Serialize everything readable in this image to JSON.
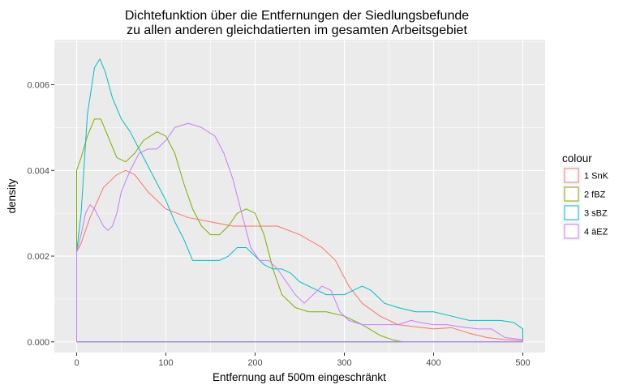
{
  "chart_data": {
    "type": "line",
    "title_line1": "Dichtefunktion über die Entfernungen der Siedlungsbefunde",
    "title_line2": "zu allen anderen gleichdatierten im gesamten Arbeitsgebiet",
    "xlabel": "Entfernung auf 500m eingeschränkt",
    "ylabel": "density",
    "xlim": [
      -25,
      525
    ],
    "ylim": [
      -0.00025,
      0.00705
    ],
    "x_ticks": [
      0,
      100,
      200,
      300,
      400,
      500
    ],
    "x_tick_labels": [
      "0",
      "100",
      "200",
      "300",
      "400",
      "500"
    ],
    "y_ticks": [
      0,
      0.002,
      0.004,
      0.006
    ],
    "y_tick_labels": [
      "0.000",
      "0.002",
      "0.004",
      "0.006"
    ],
    "grid": true,
    "legend": {
      "title": "colour",
      "position": "right"
    },
    "panel_color": "#ebebeb",
    "grid_color": "#ffffff",
    "series": [
      {
        "name": "1 SnK",
        "color": "#F8766D",
        "points": [
          [
            0,
            0.0021
          ],
          [
            5,
            0.0023
          ],
          [
            15,
            0.0029
          ],
          [
            30,
            0.0036
          ],
          [
            45,
            0.0039
          ],
          [
            55,
            0.004
          ],
          [
            65,
            0.0039
          ],
          [
            80,
            0.0035
          ],
          [
            100,
            0.0031
          ],
          [
            125,
            0.0029
          ],
          [
            150,
            0.0028
          ],
          [
            175,
            0.0027
          ],
          [
            200,
            0.0027
          ],
          [
            225,
            0.0027
          ],
          [
            250,
            0.0025
          ],
          [
            275,
            0.0022
          ],
          [
            290,
            0.0019
          ],
          [
            305,
            0.0013
          ],
          [
            320,
            0.0009
          ],
          [
            340,
            0.0006
          ],
          [
            360,
            0.0004
          ],
          [
            380,
            0.00035
          ],
          [
            400,
            0.0003
          ],
          [
            420,
            0.00033
          ],
          [
            440,
            0.0002
          ],
          [
            460,
            0.0001
          ],
          [
            480,
            5e-05
          ],
          [
            500,
            3e-05
          ],
          [
            500,
            0
          ],
          [
            0,
            0
          ],
          [
            0,
            0.0021
          ]
        ]
      },
      {
        "name": "2 fBZ",
        "color": "#7CAE00",
        "points": [
          [
            0,
            0.004
          ],
          [
            5,
            0.0043
          ],
          [
            12,
            0.0048
          ],
          [
            20,
            0.0052
          ],
          [
            27,
            0.0052
          ],
          [
            35,
            0.0048
          ],
          [
            45,
            0.0043
          ],
          [
            55,
            0.0042
          ],
          [
            65,
            0.0044
          ],
          [
            75,
            0.0047
          ],
          [
            90,
            0.0049
          ],
          [
            100,
            0.0048
          ],
          [
            110,
            0.0044
          ],
          [
            120,
            0.0037
          ],
          [
            130,
            0.0031
          ],
          [
            140,
            0.0027
          ],
          [
            150,
            0.0025
          ],
          [
            160,
            0.0025
          ],
          [
            170,
            0.0027
          ],
          [
            180,
            0.003
          ],
          [
            190,
            0.0031
          ],
          [
            200,
            0.003
          ],
          [
            210,
            0.0025
          ],
          [
            220,
            0.0017
          ],
          [
            230,
            0.0011
          ],
          [
            245,
            0.0008
          ],
          [
            260,
            0.0007
          ],
          [
            280,
            0.0007
          ],
          [
            300,
            0.0006
          ],
          [
            320,
            0.0004
          ],
          [
            340,
            0.00015
          ],
          [
            355,
            4e-05
          ],
          [
            365,
            0.0
          ],
          [
            0,
            0
          ],
          [
            0,
            0.004
          ]
        ]
      },
      {
        "name": "3 sBZ",
        "color": "#00BFC4",
        "points": [
          [
            0,
            0.0021
          ],
          [
            5,
            0.003
          ],
          [
            12,
            0.0053
          ],
          [
            20,
            0.0064
          ],
          [
            26,
            0.0066
          ],
          [
            32,
            0.0063
          ],
          [
            40,
            0.0057
          ],
          [
            50,
            0.0052
          ],
          [
            60,
            0.0049
          ],
          [
            70,
            0.0045
          ],
          [
            80,
            0.0041
          ],
          [
            90,
            0.0037
          ],
          [
            100,
            0.0033
          ],
          [
            110,
            0.0028
          ],
          [
            120,
            0.0024
          ],
          [
            130,
            0.0019
          ],
          [
            140,
            0.0019
          ],
          [
            150,
            0.0019
          ],
          [
            160,
            0.0019
          ],
          [
            170,
            0.002
          ],
          [
            180,
            0.0022
          ],
          [
            190,
            0.0022
          ],
          [
            200,
            0.002
          ],
          [
            210,
            0.0018
          ],
          [
            220,
            0.0017
          ],
          [
            230,
            0.0017
          ],
          [
            240,
            0.0016
          ],
          [
            250,
            0.0014
          ],
          [
            260,
            0.0013
          ],
          [
            270,
            0.0012
          ],
          [
            280,
            0.0011
          ],
          [
            290,
            0.0011
          ],
          [
            300,
            0.0011
          ],
          [
            310,
            0.0012
          ],
          [
            320,
            0.0013
          ],
          [
            330,
            0.0012
          ],
          [
            345,
            0.0009
          ],
          [
            360,
            0.0008
          ],
          [
            380,
            0.0007
          ],
          [
            400,
            0.0007
          ],
          [
            420,
            0.0006
          ],
          [
            440,
            0.0005
          ],
          [
            460,
            0.0005
          ],
          [
            475,
            0.0005
          ],
          [
            490,
            0.00045
          ],
          [
            500,
            0.0003
          ],
          [
            500,
            0
          ],
          [
            0,
            0
          ],
          [
            0,
            0.0021
          ]
        ]
      },
      {
        "name": "4 äEZ",
        "color": "#C77CFF",
        "points": [
          [
            0,
            0.0021
          ],
          [
            5,
            0.0025
          ],
          [
            10,
            0.003
          ],
          [
            15,
            0.0032
          ],
          [
            20,
            0.0031
          ],
          [
            25,
            0.0029
          ],
          [
            30,
            0.0027
          ],
          [
            35,
            0.0026
          ],
          [
            40,
            0.0027
          ],
          [
            45,
            0.003
          ],
          [
            50,
            0.0035
          ],
          [
            60,
            0.004
          ],
          [
            70,
            0.0044
          ],
          [
            80,
            0.0045
          ],
          [
            90,
            0.0045
          ],
          [
            100,
            0.0047
          ],
          [
            110,
            0.005
          ],
          [
            125,
            0.0051
          ],
          [
            140,
            0.005
          ],
          [
            155,
            0.0048
          ],
          [
            165,
            0.0044
          ],
          [
            175,
            0.0038
          ],
          [
            185,
            0.003
          ],
          [
            195,
            0.0022
          ],
          [
            205,
            0.0019
          ],
          [
            215,
            0.0019
          ],
          [
            225,
            0.0017
          ],
          [
            235,
            0.0014
          ],
          [
            245,
            0.0011
          ],
          [
            255,
            0.0009
          ],
          [
            265,
            0.0011
          ],
          [
            275,
            0.0013
          ],
          [
            285,
            0.0012
          ],
          [
            295,
            0.0007
          ],
          [
            305,
            0.0005
          ],
          [
            320,
            0.0004
          ],
          [
            340,
            0.0004
          ],
          [
            360,
            0.0004
          ],
          [
            375,
            0.0005
          ],
          [
            385,
            0.00045
          ],
          [
            400,
            0.0004
          ],
          [
            415,
            0.0004
          ],
          [
            430,
            0.00035
          ],
          [
            450,
            0.0003
          ],
          [
            465,
            0.0003
          ],
          [
            480,
            0.0001
          ],
          [
            500,
            5e-05
          ],
          [
            500,
            0
          ],
          [
            0,
            0
          ],
          [
            0,
            0.0021
          ]
        ]
      }
    ]
  }
}
